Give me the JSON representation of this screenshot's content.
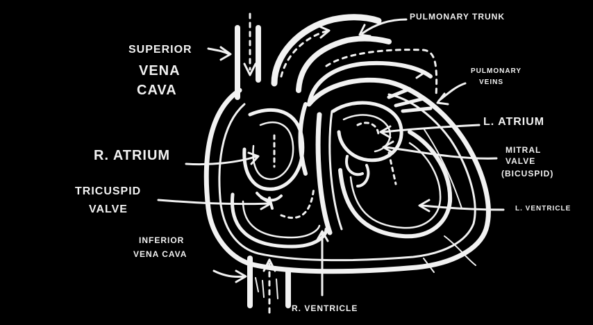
{
  "labels": {
    "pulmonary_trunk": "Pulmonary Trunk",
    "superior_vena_cava_1": "Superior",
    "superior_vena_cava_2": "Vena",
    "superior_vena_cava_3": "Cava",
    "pulmonary_veins_1": "Pulmonary",
    "pulmonary_veins_2": "Veins",
    "l_atrium": "L. Atrium",
    "r_atrium": "R. Atrium",
    "mitral_valve_1": "Mitral",
    "mitral_valve_2": "Valve",
    "mitral_valve_3": "(Bicuspid)",
    "tricuspid_valve_1": "Tricuspid",
    "tricuspid_valve_2": "Valve",
    "l_ventricle": "L. Ventricle",
    "inferior_vena_cava_1": "Inferior",
    "inferior_vena_cava_2": "Vena Cava",
    "r_ventricle": "R. Ventricle"
  },
  "colors": {
    "background": "#000000",
    "ink": "#f2f2f2"
  }
}
